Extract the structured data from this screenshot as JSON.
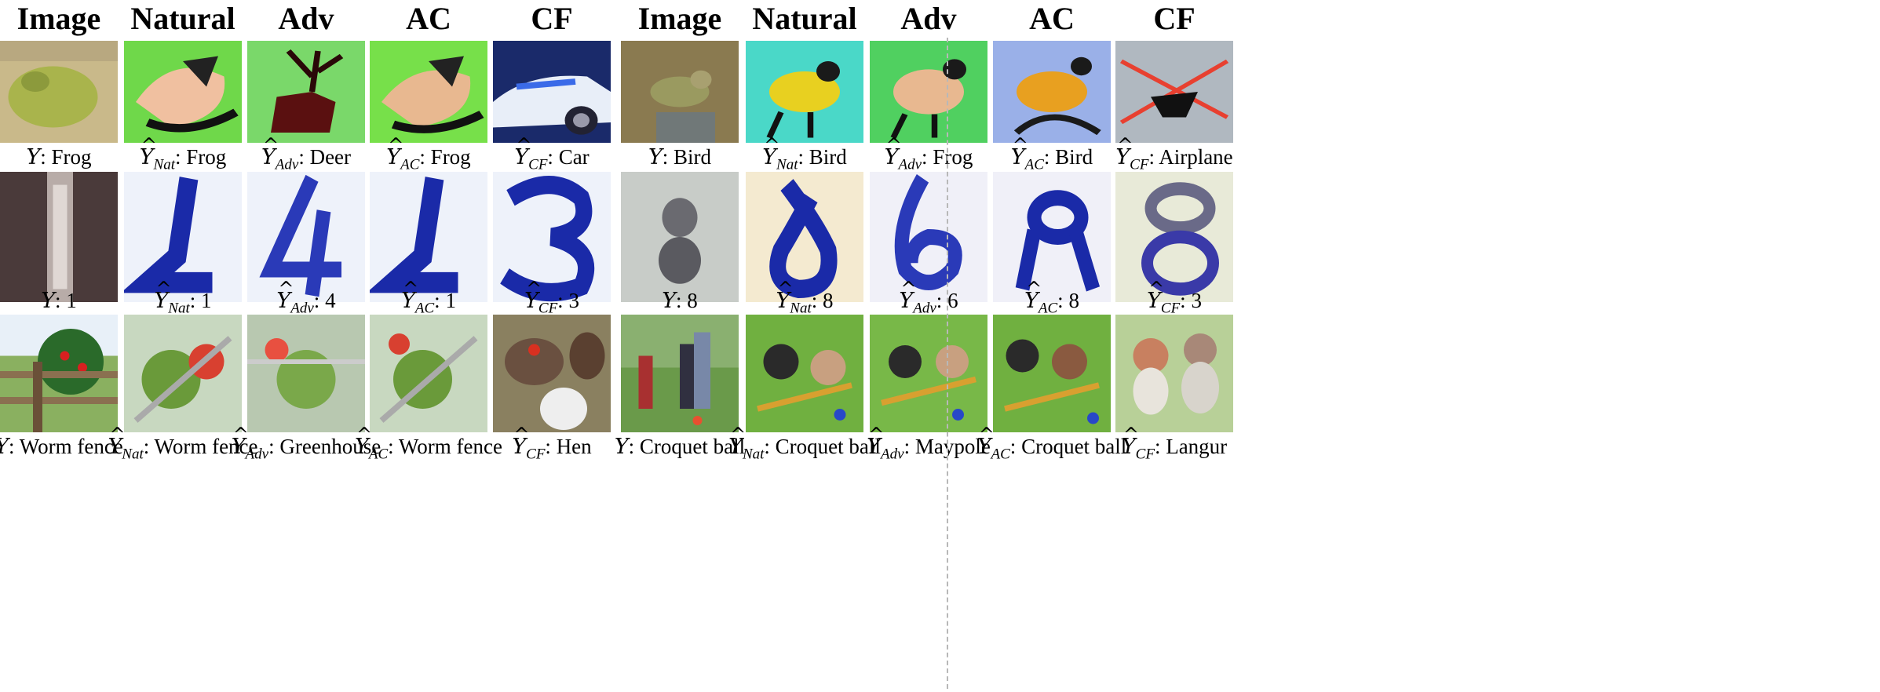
{
  "left": {
    "headers": [
      "Image",
      "Natural",
      "Adv",
      "AC",
      "CF"
    ],
    "rows": [
      {
        "caps": [
          {
            "sym": "Y",
            "hat": false,
            "sub": "",
            "label": "Frog"
          },
          {
            "sym": "Y",
            "hat": true,
            "sub": "Nat",
            "label": "Frog"
          },
          {
            "sym": "Y",
            "hat": true,
            "sub": "Adv",
            "label": "Deer"
          },
          {
            "sym": "Y",
            "hat": true,
            "sub": "AC",
            "label": "Frog"
          },
          {
            "sym": "Y",
            "hat": true,
            "sub": "CF",
            "label": "Car"
          }
        ]
      },
      {
        "caps": [
          {
            "sym": "Y",
            "hat": false,
            "sub": "",
            "label": "1"
          },
          {
            "sym": "Y",
            "hat": true,
            "sub": "Nat",
            "label": "1"
          },
          {
            "sym": "Y",
            "hat": true,
            "sub": "Adv",
            "label": "4"
          },
          {
            "sym": "Y",
            "hat": true,
            "sub": "AC",
            "label": "1"
          },
          {
            "sym": "Y",
            "hat": true,
            "sub": "CF",
            "label": "3"
          }
        ]
      },
      {
        "caps": [
          {
            "sym": "Y",
            "hat": false,
            "sub": "",
            "label": "Worm fence"
          },
          {
            "sym": "Y",
            "hat": true,
            "sub": "Nat",
            "label": "Worm fence"
          },
          {
            "sym": "Y",
            "hat": true,
            "sub": "Adv",
            "label": "Greenhouse"
          },
          {
            "sym": "Y",
            "hat": true,
            "sub": "AC",
            "label": "Worm fence"
          },
          {
            "sym": "Y",
            "hat": true,
            "sub": "CF",
            "label": "Hen"
          }
        ]
      }
    ]
  },
  "right": {
    "headers": [
      "Image",
      "Natural",
      "Adv",
      "AC",
      "CF"
    ],
    "rows": [
      {
        "caps": [
          {
            "sym": "Y",
            "hat": false,
            "sub": "",
            "label": "Bird"
          },
          {
            "sym": "Y",
            "hat": true,
            "sub": "Nat",
            "label": "Bird"
          },
          {
            "sym": "Y",
            "hat": true,
            "sub": "Adv",
            "label": "Frog"
          },
          {
            "sym": "Y",
            "hat": true,
            "sub": "AC",
            "label": "Bird"
          },
          {
            "sym": "Y",
            "hat": true,
            "sub": "CF",
            "label": "Airplane"
          }
        ]
      },
      {
        "caps": [
          {
            "sym": "Y",
            "hat": false,
            "sub": "",
            "label": "8"
          },
          {
            "sym": "Y",
            "hat": true,
            "sub": "Nat",
            "label": "8"
          },
          {
            "sym": "Y",
            "hat": true,
            "sub": "Adv",
            "label": "6"
          },
          {
            "sym": "Y",
            "hat": true,
            "sub": "AC",
            "label": "8"
          },
          {
            "sym": "Y",
            "hat": true,
            "sub": "CF",
            "label": "3"
          }
        ]
      },
      {
        "caps": [
          {
            "sym": "Y",
            "hat": false,
            "sub": "",
            "label": "Croquet ball"
          },
          {
            "sym": "Y",
            "hat": true,
            "sub": "Nat",
            "label": "Croquet ball"
          },
          {
            "sym": "Y",
            "hat": true,
            "sub": "Adv",
            "label": "Maypole"
          },
          {
            "sym": "Y",
            "hat": true,
            "sub": "AC",
            "label": "Croquet ball"
          },
          {
            "sym": "Y",
            "hat": true,
            "sub": "CF",
            "label": "Langur"
          }
        ]
      }
    ]
  }
}
